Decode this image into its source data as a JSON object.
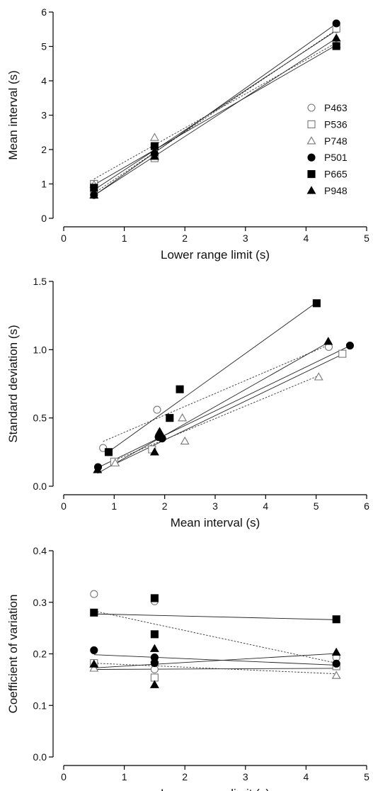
{
  "legend": {
    "items": [
      {
        "name": "P463",
        "marker": "circle",
        "filled": false
      },
      {
        "name": "P536",
        "marker": "square",
        "filled": false
      },
      {
        "name": "P748",
        "marker": "triangle",
        "filled": false
      },
      {
        "name": "P501",
        "marker": "circle",
        "filled": true
      },
      {
        "name": "P665",
        "marker": "square",
        "filled": true
      },
      {
        "name": "P948",
        "marker": "triangle",
        "filled": true
      }
    ],
    "placement": "right"
  },
  "chart_data": [
    {
      "type": "scatter",
      "xlabel": "Lower range limit (s)",
      "ylabel": "Mean interval (s)",
      "xlim": [
        0,
        5
      ],
      "ylim": [
        0,
        6
      ],
      "xticks": [
        "0",
        "1",
        "2",
        "3",
        "4",
        "5"
      ],
      "yticks": [
        "0",
        "1",
        "2",
        "3",
        "4",
        "5",
        "6"
      ],
      "grid": false,
      "legend": "right",
      "series": [
        {
          "name": "P463",
          "x": [
            0.5,
            1.5,
            4.5
          ],
          "y": [
            0.78,
            1.85,
            5.5
          ],
          "marker": "circle",
          "filled": false,
          "fit": "dotted"
        },
        {
          "name": "P536",
          "x": [
            0.5,
            1.5,
            4.5
          ],
          "y": [
            1.0,
            1.75,
            5.52
          ],
          "marker": "square",
          "filled": false,
          "fit": "solid"
        },
        {
          "name": "P748",
          "x": [
            0.5,
            1.5,
            4.5
          ],
          "y": [
            0.98,
            2.35,
            5.05
          ],
          "marker": "triangle",
          "filled": false,
          "fit": "dotted"
        },
        {
          "name": "P501",
          "x": [
            0.5,
            1.5,
            4.5
          ],
          "y": [
            0.68,
            1.88,
            5.67
          ],
          "marker": "circle",
          "filled": true,
          "fit": "solid"
        },
        {
          "name": "P665",
          "x": [
            0.5,
            1.5,
            4.5
          ],
          "y": [
            0.89,
            2.1,
            5.01
          ],
          "marker": "square",
          "filled": true,
          "fit": "solid"
        },
        {
          "name": "P948",
          "x": [
            0.5,
            1.5,
            4.5
          ],
          "y": [
            0.67,
            1.8,
            5.24
          ],
          "marker": "triangle",
          "filled": true,
          "fit": "solid"
        }
      ]
    },
    {
      "type": "scatter",
      "xlabel": "Mean interval (s)",
      "ylabel": "Standard deviation (s)",
      "xlim": [
        0,
        6
      ],
      "ylim": [
        0,
        1.5
      ],
      "xticks": [
        "0",
        "1",
        "2",
        "3",
        "4",
        "5",
        "6"
      ],
      "yticks": [
        "0.0",
        "0.5",
        "1.0",
        "1.5"
      ],
      "grid": false,
      "series": [
        {
          "name": "P463",
          "x": [
            0.78,
            1.85,
            5.25
          ],
          "y": [
            0.28,
            0.56,
            1.02
          ],
          "marker": "circle",
          "filled": false,
          "fit": "dotted"
        },
        {
          "name": "P536",
          "x": [
            1.0,
            1.75,
            5.52
          ],
          "y": [
            0.18,
            0.27,
            0.97
          ],
          "marker": "square",
          "filled": false,
          "fit": "solid"
        },
        {
          "name": "P748",
          "x": [
            1.02,
            2.35,
            2.4,
            5.05
          ],
          "y": [
            0.17,
            0.5,
            0.33,
            0.8
          ],
          "marker": "triangle",
          "filled": false,
          "fit": "dotted"
        },
        {
          "name": "P501",
          "x": [
            0.68,
            1.88,
            1.95,
            5.67
          ],
          "y": [
            0.14,
            0.36,
            0.35,
            1.03
          ],
          "marker": "circle",
          "filled": true,
          "fit": "solid"
        },
        {
          "name": "P665",
          "x": [
            0.89,
            2.1,
            2.3,
            5.01
          ],
          "y": [
            0.25,
            0.5,
            0.71,
            1.34
          ],
          "marker": "square",
          "filled": true,
          "fit": "solid"
        },
        {
          "name": "P948",
          "x": [
            0.67,
            1.8,
            1.9,
            5.24
          ],
          "y": [
            0.12,
            0.25,
            0.4,
            1.06
          ],
          "marker": "triangle",
          "filled": true,
          "fit": "solid"
        }
      ]
    },
    {
      "type": "scatter",
      "xlabel": "Lower range limit (s)",
      "ylabel": "Coefficient of variation",
      "xlim": [
        0,
        5
      ],
      "ylim": [
        0,
        0.4
      ],
      "xticks": [
        "0",
        "1",
        "2",
        "3",
        "4",
        "5"
      ],
      "yticks": [
        "0.0",
        "0.1",
        "0.2",
        "0.3",
        "0.4"
      ],
      "grid": false,
      "series": [
        {
          "name": "P463",
          "x": [
            0.5,
            1.5,
            1.5,
            4.5
          ],
          "y": [
            0.316,
            0.302,
            0.17,
            0.193
          ],
          "marker": "circle",
          "filled": false,
          "fit": "dotted"
        },
        {
          "name": "P536",
          "x": [
            0.5,
            1.5,
            4.5
          ],
          "y": [
            0.182,
            0.154,
            0.176
          ],
          "marker": "square",
          "filled": false,
          "fit": "solid"
        },
        {
          "name": "P748",
          "x": [
            0.5,
            1.5,
            4.5
          ],
          "y": [
            0.172,
            0.19,
            0.158
          ],
          "marker": "triangle",
          "filled": false,
          "fit": "dotted"
        },
        {
          "name": "P501",
          "x": [
            0.5,
            1.5,
            1.5,
            4.5
          ],
          "y": [
            0.207,
            0.193,
            0.182,
            0.181
          ],
          "marker": "circle",
          "filled": true,
          "fit": "solid"
        },
        {
          "name": "P665",
          "x": [
            0.5,
            1.5,
            1.5,
            4.5
          ],
          "y": [
            0.28,
            0.308,
            0.238,
            0.267
          ],
          "marker": "square",
          "filled": true,
          "fit": "solid"
        },
        {
          "name": "P948",
          "x": [
            0.5,
            1.5,
            1.5,
            4.5
          ],
          "y": [
            0.18,
            0.21,
            0.14,
            0.203
          ],
          "marker": "triangle",
          "filled": true,
          "fit": "solid"
        }
      ]
    }
  ]
}
